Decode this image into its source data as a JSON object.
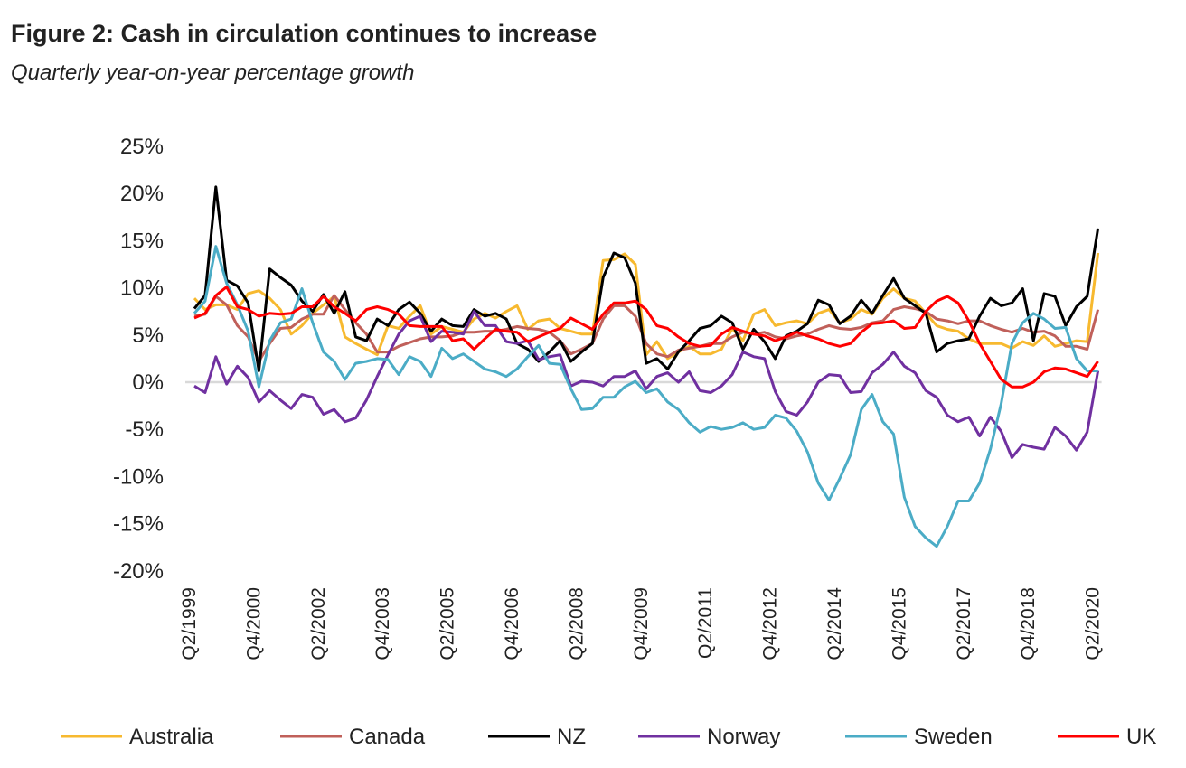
{
  "title": "Figure 2: Cash in circulation continues to increase",
  "subtitle": "Quarterly year-on-year percentage growth",
  "chart_data": {
    "type": "line",
    "title": "Figure 2: Cash in circulation continues to increase",
    "subtitle": "Quarterly year-on-year percentage growth",
    "xlabel": "",
    "ylabel": "",
    "x_start": "Q2/1999",
    "x_end": "Q2/2020",
    "x_frequency": "quarterly",
    "x_tick_labels": [
      "Q2/1999",
      "Q4/2000",
      "Q2/2002",
      "Q4/2003",
      "Q2/2005",
      "Q4/2006",
      "Q2/2008",
      "Q4/2009",
      "Q2/2011",
      "Q4/2012",
      "Q2/2014",
      "Q4/2015",
      "Q2/2017",
      "Q4/2018",
      "Q2/2020"
    ],
    "y_tick_labels": [
      "25%",
      "20%",
      "15%",
      "10%",
      "5%",
      "0%",
      "-5%",
      "-10%",
      "-15%",
      "-20%"
    ],
    "ylim": [
      -20,
      25
    ],
    "y_unit": "%",
    "grid": false,
    "zero_line": true,
    "legend_position": "bottom",
    "series": [
      {
        "name": "Australia",
        "color": "#f7b92f",
        "values": [
          8.9,
          7.7,
          8.2,
          8.2,
          7.7,
          9.4,
          9.7,
          8.9,
          7.7,
          5.1,
          6.0,
          7.3,
          8.2,
          9.1,
          4.8,
          4.1,
          3.5,
          2.9,
          6.0,
          5.7,
          7.0,
          8.1,
          5.1,
          5.9,
          5.6,
          5.3,
          6.7,
          7.3,
          6.8,
          7.5,
          8.1,
          5.6,
          6.5,
          6.7,
          5.7,
          5.4,
          5.1,
          5.1,
          12.9,
          13.0,
          13.6,
          12.5,
          2.9,
          4.3,
          2.5,
          3.2,
          3.8,
          3.0,
          3.0,
          3.5,
          5.7,
          4.4,
          7.2,
          7.7,
          6.0,
          6.3,
          6.5,
          6.2,
          7.3,
          7.7,
          6.3,
          6.7,
          7.7,
          7.2,
          8.9,
          9.9,
          8.9,
          8.6,
          7.3,
          6.0,
          5.6,
          5.4,
          4.6,
          4.1,
          4.1,
          4.1,
          3.6,
          4.3,
          3.9,
          4.9,
          3.8,
          4.1,
          4.4,
          4.3,
          13.7
        ]
      },
      {
        "name": "Canada",
        "color": "#c0605a",
        "values": [
          7.0,
          7.2,
          9.1,
          8.2,
          6.0,
          4.8,
          2.2,
          4.1,
          5.7,
          5.8,
          6.7,
          7.2,
          7.2,
          9.2,
          7.7,
          6.3,
          5.1,
          3.2,
          3.2,
          3.8,
          4.2,
          4.6,
          4.8,
          4.8,
          4.9,
          5.3,
          5.3,
          5.4,
          5.4,
          5.6,
          5.9,
          5.7,
          5.6,
          5.3,
          4.4,
          3.0,
          3.5,
          4.1,
          6.7,
          8.1,
          8.1,
          7.0,
          4.1,
          3.0,
          2.7,
          3.4,
          3.6,
          3.8,
          4.1,
          4.1,
          4.8,
          5.3,
          5.1,
          5.3,
          4.8,
          4.6,
          4.9,
          5.1,
          5.6,
          6.0,
          5.7,
          5.6,
          5.8,
          6.3,
          6.5,
          7.7,
          8.0,
          7.8,
          7.5,
          6.7,
          6.5,
          6.2,
          6.5,
          6.5,
          6.0,
          5.6,
          5.3,
          5.7,
          5.3,
          5.4,
          4.9,
          3.8,
          3.8,
          3.5,
          7.7
        ]
      },
      {
        "name": "NZ",
        "color": "#000000",
        "values": [
          7.8,
          9.2,
          20.7,
          10.8,
          10.2,
          8.4,
          1.2,
          12.0,
          11.1,
          10.3,
          8.6,
          7.5,
          9.3,
          7.3,
          9.6,
          4.8,
          4.4,
          6.7,
          6.0,
          7.7,
          8.5,
          7.3,
          5.4,
          6.7,
          6.0,
          5.9,
          7.7,
          7.0,
          7.3,
          6.7,
          4.1,
          3.5,
          2.2,
          3.2,
          4.4,
          2.2,
          3.2,
          4.1,
          11.1,
          13.7,
          13.2,
          10.5,
          2.0,
          2.5,
          1.4,
          3.2,
          4.4,
          5.7,
          6.0,
          7.0,
          6.3,
          3.5,
          5.6,
          4.3,
          2.5,
          4.9,
          5.4,
          6.2,
          8.7,
          8.2,
          6.2,
          7.0,
          8.7,
          7.3,
          9.2,
          11.0,
          8.9,
          8.1,
          7.3,
          3.2,
          4.1,
          4.4,
          4.6,
          7.0,
          8.9,
          8.1,
          8.4,
          9.9,
          4.4,
          9.4,
          9.1,
          6.0,
          8.0,
          9.1,
          16.3
        ]
      },
      {
        "name": "Norway",
        "color": "#7030a0",
        "values": [
          -0.4,
          -1.1,
          2.7,
          -0.2,
          1.7,
          0.5,
          -2.1,
          -0.9,
          -1.9,
          -2.8,
          -1.3,
          -1.6,
          -3.4,
          -2.9,
          -4.2,
          -3.8,
          -1.9,
          0.6,
          2.9,
          5.1,
          6.5,
          7.0,
          4.3,
          5.4,
          5.3,
          5.1,
          7.5,
          6.0,
          6.0,
          4.3,
          4.1,
          4.4,
          2.4,
          2.7,
          2.9,
          -0.4,
          0.1,
          0.0,
          -0.4,
          0.6,
          0.6,
          1.2,
          -0.7,
          0.6,
          1.0,
          0.0,
          1.1,
          -0.9,
          -1.1,
          -0.4,
          0.8,
          3.2,
          2.7,
          2.5,
          -1.0,
          -3.1,
          -3.5,
          -2.1,
          0.0,
          0.8,
          0.7,
          -1.1,
          -1.0,
          1.0,
          1.9,
          3.2,
          1.7,
          1.0,
          -0.9,
          -1.6,
          -3.5,
          -4.2,
          -3.7,
          -5.7,
          -3.7,
          -5.2,
          -8.0,
          -6.6,
          -6.9,
          -7.1,
          -4.8,
          -5.7,
          -7.2,
          -5.3,
          1.2
        ]
      },
      {
        "name": "Sweden",
        "color": "#4bacc6",
        "values": [
          7.3,
          8.6,
          14.4,
          10.5,
          8.2,
          5.4,
          -0.5,
          4.4,
          6.3,
          6.7,
          9.9,
          6.3,
          3.2,
          2.2,
          0.3,
          2.0,
          2.2,
          2.5,
          2.4,
          0.8,
          2.7,
          2.2,
          0.6,
          3.6,
          2.5,
          3.0,
          2.2,
          1.4,
          1.1,
          0.6,
          1.4,
          2.7,
          3.9,
          2.0,
          1.9,
          -0.7,
          -2.9,
          -2.8,
          -1.6,
          -1.6,
          -0.5,
          0.1,
          -1.1,
          -0.7,
          -2.1,
          -2.9,
          -4.3,
          -5.3,
          -4.7,
          -5.0,
          -4.8,
          -4.3,
          -5.0,
          -4.8,
          -3.5,
          -3.8,
          -5.2,
          -7.4,
          -10.7,
          -12.5,
          -10.2,
          -7.7,
          -2.9,
          -1.3,
          -4.2,
          -5.5,
          -12.2,
          -15.3,
          -16.5,
          -17.4,
          -15.3,
          -12.6,
          -12.6,
          -10.7,
          -7.1,
          -2.3,
          4.1,
          6.3,
          7.3,
          6.7,
          5.7,
          5.8,
          2.5,
          1.2,
          1.2
        ]
      },
      {
        "name": "UK",
        "color": "#ff0000",
        "values": [
          6.8,
          7.3,
          9.2,
          10.1,
          8.0,
          7.7,
          7.0,
          7.3,
          7.2,
          7.3,
          8.0,
          8.0,
          9.1,
          8.0,
          7.3,
          6.5,
          7.7,
          8.0,
          7.7,
          7.2,
          6.0,
          5.9,
          5.9,
          5.9,
          4.4,
          4.6,
          3.5,
          4.6,
          5.6,
          5.4,
          5.3,
          4.3,
          4.8,
          5.3,
          5.7,
          6.8,
          6.2,
          5.6,
          7.2,
          8.4,
          8.4,
          8.6,
          7.7,
          6.0,
          5.7,
          4.8,
          4.1,
          3.8,
          3.9,
          5.1,
          5.8,
          5.4,
          5.1,
          4.9,
          4.4,
          4.8,
          5.3,
          4.9,
          4.6,
          4.1,
          3.8,
          4.1,
          5.3,
          6.2,
          6.3,
          6.5,
          5.7,
          5.8,
          7.5,
          8.6,
          9.1,
          8.4,
          6.5,
          4.1,
          2.2,
          0.3,
          -0.5,
          -0.5,
          0.0,
          1.1,
          1.5,
          1.4,
          1.0,
          0.6,
          2.2
        ]
      }
    ]
  }
}
